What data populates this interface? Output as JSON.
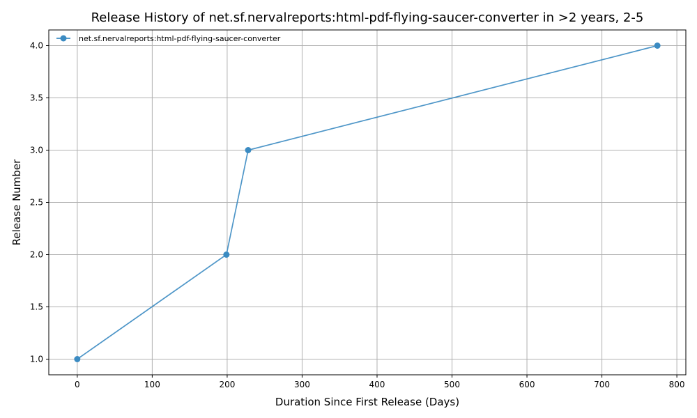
{
  "chart_data": {
    "type": "line",
    "title": "Release History of net.sf.nervalreports:html-pdf-flying-saucer-converter in >2 years, 2-5",
    "xlabel": "Duration Since First Release (Days)",
    "ylabel": "Release Number",
    "xlim": [
      -38,
      812
    ],
    "ylim": [
      0.85,
      4.15
    ],
    "xticks": [
      0,
      100,
      200,
      300,
      400,
      500,
      600,
      700,
      800
    ],
    "yticks": [
      1.0,
      1.5,
      2.0,
      2.5,
      3.0,
      3.5,
      4.0
    ],
    "xtick_labels": [
      "0",
      "100",
      "200",
      "300",
      "400",
      "500",
      "600",
      "700",
      "800"
    ],
    "ytick_labels": [
      "1.0",
      "1.5",
      "2.0",
      "2.5",
      "3.0",
      "3.5",
      "4.0"
    ],
    "grid": true,
    "legend_position": "top-left",
    "series": [
      {
        "name": "net.sf.nervalreports:html-pdf-flying-saucer-converter",
        "color": "#3b8bc2",
        "marker": "circle",
        "x": [
          0,
          199,
          228,
          774
        ],
        "y": [
          1,
          2,
          3,
          4
        ]
      }
    ]
  }
}
